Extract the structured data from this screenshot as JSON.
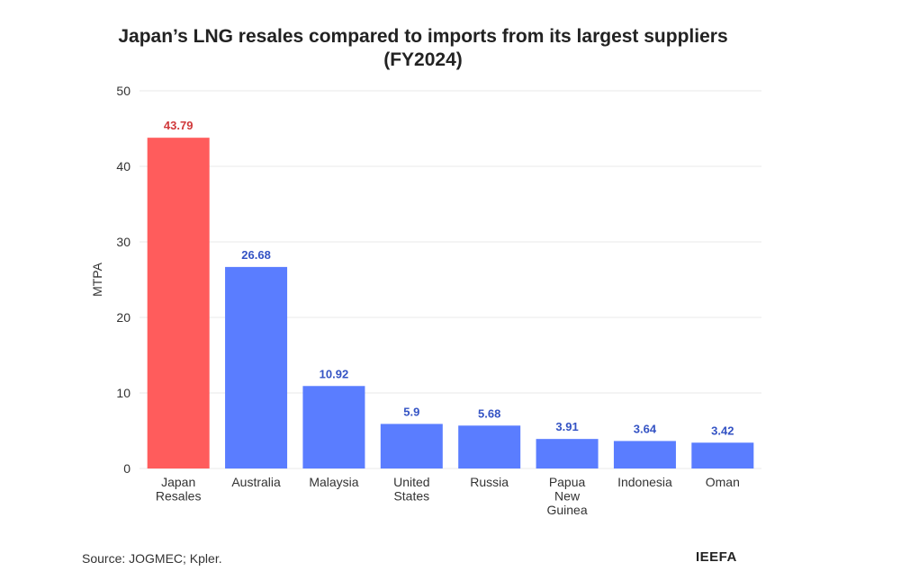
{
  "title_line1": "Japan’s LNG resales compared to imports from its largest suppliers",
  "title_line2": "(FY2024)",
  "source": "Source: JOGMEC; Kpler.",
  "brand": "IEEFA",
  "colors": {
    "highlight": "#ff5c5c",
    "bar": "#5a7dff",
    "highlight_label": "#d0393b",
    "bar_label": "#3453c4",
    "grid": "#e8e8e8",
    "axis_text": "#333333"
  },
  "chart_data": {
    "type": "bar",
    "title": "Japan’s LNG resales compared to imports from its largest suppliers (FY2024)",
    "xlabel": "",
    "ylabel": "MTPA",
    "ylim": [
      0,
      50
    ],
    "yticks": [
      0,
      10,
      20,
      30,
      40,
      50
    ],
    "grid": true,
    "categories": [
      [
        "Japan",
        "Resales"
      ],
      [
        "Australia"
      ],
      [
        "Malaysia"
      ],
      [
        "United",
        "States"
      ],
      [
        "Russia"
      ],
      [
        "Papua",
        "New",
        "Guinea"
      ],
      [
        "Indonesia"
      ],
      [
        "Oman"
      ]
    ],
    "values": [
      43.79,
      26.68,
      10.92,
      5.9,
      5.68,
      3.91,
      3.64,
      3.42
    ],
    "value_labels": [
      "43.79",
      "26.68",
      "10.92",
      "5.9",
      "5.68",
      "3.91",
      "3.64",
      "3.42"
    ],
    "highlight_index": 0
  }
}
